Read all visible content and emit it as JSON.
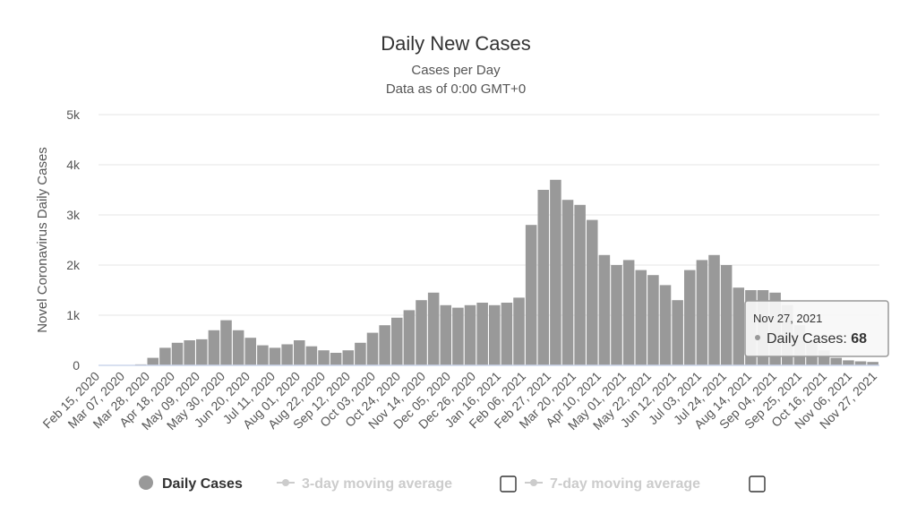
{
  "chart_data": {
    "type": "bar",
    "title": "Daily New Cases",
    "subtitle_lines": [
      "Cases per Day",
      "Data as of 0:00 GMT+0"
    ],
    "ylabel": "Novel Coronavirus Daily Cases",
    "xlabel": "",
    "ylim": [
      0,
      5000
    ],
    "yticks": [
      0,
      1000,
      2000,
      3000,
      4000,
      5000
    ],
    "ytick_labels": [
      "0",
      "1k",
      "2k",
      "3k",
      "4k",
      "5k"
    ],
    "xtick_labels": [
      "Feb 15, 2020",
      "Mar 07, 2020",
      "Mar 28, 2020",
      "Apr 18, 2020",
      "May 09, 2020",
      "May 30, 2020",
      "Jun 20, 2020",
      "Jul 11, 2020",
      "Aug 01, 2020",
      "Aug 22, 2020",
      "Sep 12, 2020",
      "Oct 03, 2020",
      "Oct 24, 2020",
      "Nov 14, 2020",
      "Dec 05, 2020",
      "Dec 26, 2020",
      "Jan 16, 2021",
      "Feb 06, 2021",
      "Feb 27, 2021",
      "Mar 20, 2021",
      "Apr 10, 2021",
      "May 01, 2021",
      "May 22, 2021",
      "Jun 12, 2021",
      "Jul 03, 2021",
      "Jul 24, 2021",
      "Aug 14, 2021",
      "Sep 04, 2021",
      "Sep 25, 2021",
      "Oct 16, 2021",
      "Nov 06, 2021",
      "Nov 27, 2021"
    ],
    "grid": true,
    "series": [
      {
        "name": "Daily Cases",
        "color": "#999999",
        "interval_days": 7,
        "start_date": "Feb 15, 2020",
        "values": [
          0,
          0,
          0,
          20,
          150,
          350,
          450,
          500,
          520,
          700,
          900,
          700,
          550,
          400,
          350,
          420,
          500,
          380,
          300,
          250,
          300,
          450,
          650,
          800,
          950,
          1100,
          1300,
          1450,
          1200,
          1150,
          1200,
          1250,
          1200,
          1250,
          1350,
          2800,
          3500,
          3700,
          3300,
          3200,
          2900,
          2200,
          2000,
          2100,
          1900,
          1800,
          1600,
          1300,
          1900,
          2100,
          2200,
          2000,
          1550,
          1500,
          1500,
          1450,
          1200,
          800,
          500,
          300,
          150,
          100,
          80,
          68
        ]
      },
      {
        "name": "3-day moving average",
        "visible": false
      },
      {
        "name": "7-day moving average",
        "visible": false
      }
    ],
    "legend": {
      "position": "bottom-center"
    },
    "tooltip": {
      "date": "Nov 27, 2021",
      "series": "Daily Cases",
      "value": 68
    }
  },
  "colors": {
    "bar": "#999999",
    "grid": "#e6e6e6",
    "baseline": "#ccd6eb",
    "legend_inactive": "#cccccc"
  }
}
